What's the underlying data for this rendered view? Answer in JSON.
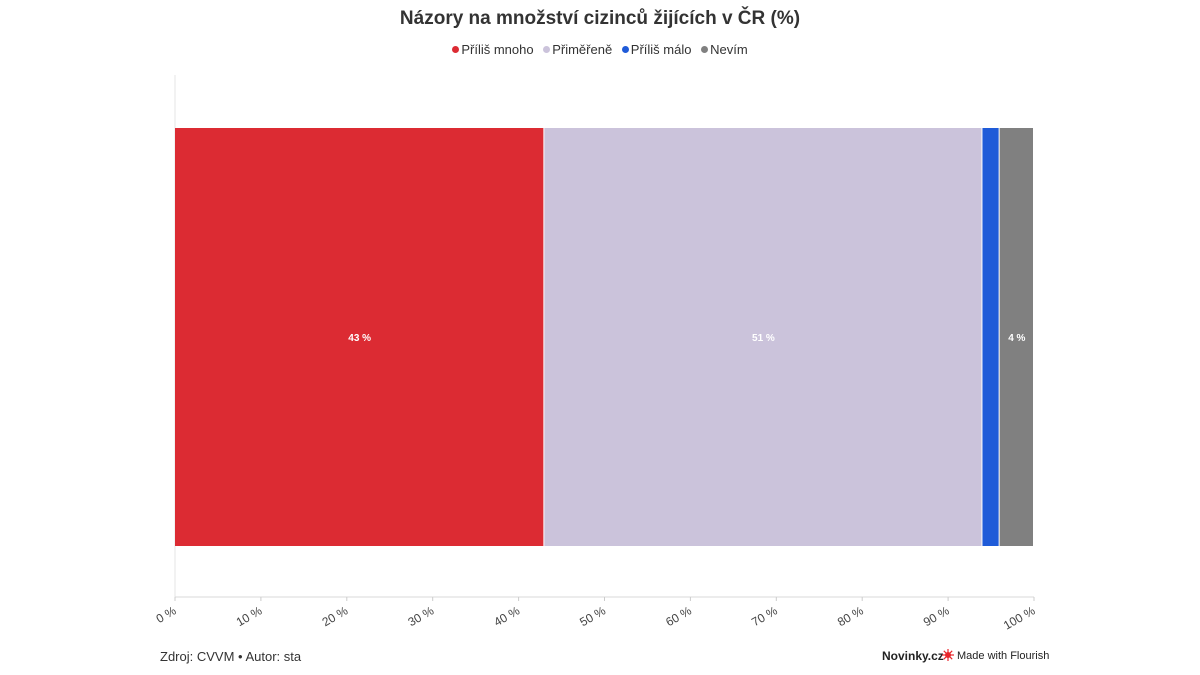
{
  "title": "Názory na množství cizinců žijících v ČR (%)",
  "legend": [
    {
      "label": "Příliš mnoho",
      "color": "#dc2b33"
    },
    {
      "label": "Přiměřeně",
      "color": "#cbc3db"
    },
    {
      "label": "Příliš málo",
      "color": "#1f5bd8"
    },
    {
      "label": "Nevím",
      "color": "#808080"
    }
  ],
  "chart_data": {
    "type": "bar",
    "orientation": "horizontal-stacked",
    "categories": [
      ""
    ],
    "series": [
      {
        "name": "Příliš mnoho",
        "values": [
          43
        ],
        "color": "#dc2b33",
        "label": "43 %"
      },
      {
        "name": "Přiměřeně",
        "values": [
          51
        ],
        "color": "#cbc3db",
        "label": "51 %"
      },
      {
        "name": "Příliš málo",
        "values": [
          2
        ],
        "color": "#1f5bd8",
        "label": ""
      },
      {
        "name": "Nevím",
        "values": [
          4
        ],
        "color": "#808080",
        "label": "4 %"
      }
    ],
    "xlim": [
      0,
      100
    ],
    "xticks": [
      "0 %",
      "10 %",
      "20 %",
      "30 %",
      "40 %",
      "50 %",
      "60 %",
      "70 %",
      "80 %",
      "90 %",
      "100 %"
    ],
    "legend_position": "top-center",
    "grid": false
  },
  "footer": {
    "source": "Zdroj: CVVM • Autor: sta",
    "brand": "Novinky.cz",
    "flourish": "Made with Flourish",
    "flourish_icon": "flourish-logo-icon"
  }
}
